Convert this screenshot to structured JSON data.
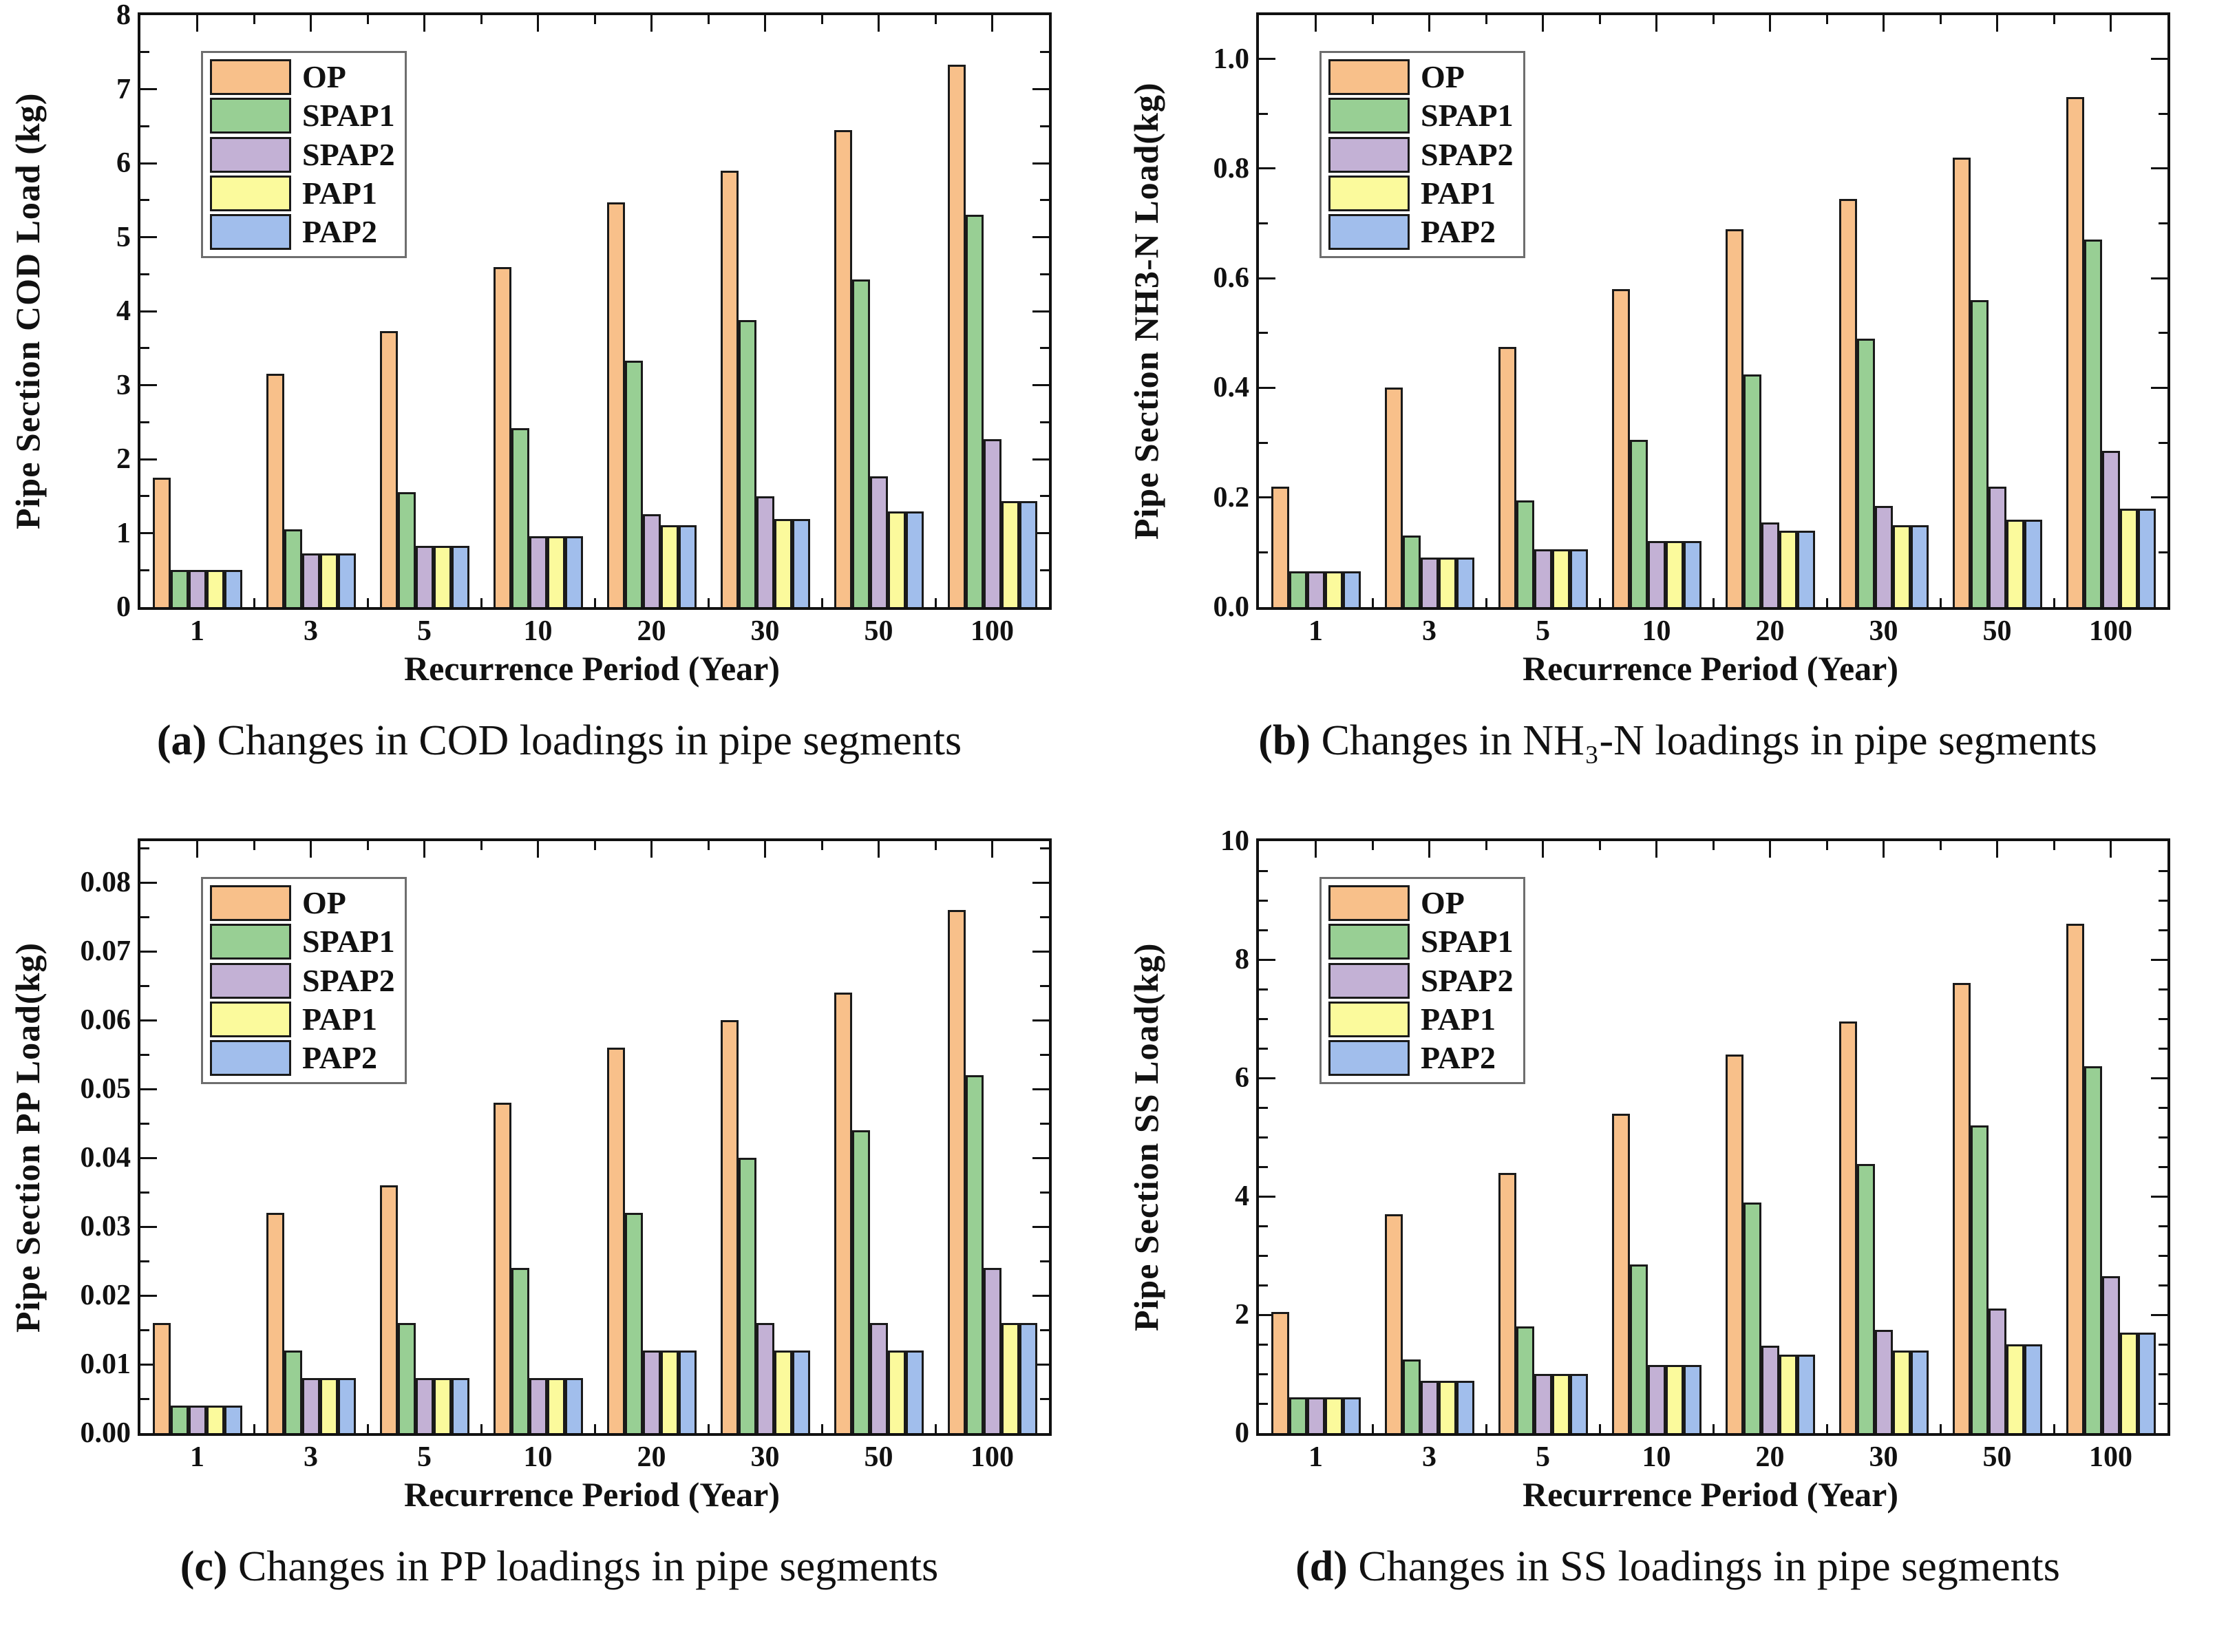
{
  "colors": {
    "OP": "#F8C08A",
    "SPAP1": "#98CF94",
    "SPAP2": "#C3B1D5",
    "PAP1": "#FBFA9C",
    "PAP2": "#A1BEEC",
    "bar_border": "#1a1a1a",
    "axis": "#111111",
    "legend_border": "#6e6e6e"
  },
  "series_names": [
    "OP",
    "SPAP1",
    "SPAP2",
    "PAP1",
    "PAP2"
  ],
  "x_label": "Recurrence Period (Year)",
  "categories": [
    "1",
    "3",
    "5",
    "10",
    "20",
    "30",
    "50",
    "100"
  ],
  "chart_data": "see charts[] below",
  "charts": [
    {
      "type": "bar",
      "caption_letter": "(a)",
      "caption_text": "Changes in COD loadings in pipe segments",
      "ylabel": "Pipe Section COD Load (kg)",
      "ylabel_max": 8,
      "axis_top": 8,
      "ymajor": 1,
      "yminor": 0.5,
      "decimals": 0,
      "categories": [
        "1",
        "3",
        "5",
        "10",
        "20",
        "30",
        "50",
        "100"
      ],
      "series": [
        {
          "name": "OP",
          "values": [
            1.75,
            3.15,
            3.73,
            4.6,
            5.47,
            5.9,
            6.45,
            7.33
          ]
        },
        {
          "name": "SPAP1",
          "values": [
            0.5,
            1.05,
            1.55,
            2.42,
            3.33,
            3.88,
            4.43,
            5.3
          ]
        },
        {
          "name": "SPAP2",
          "values": [
            0.5,
            0.73,
            0.83,
            0.96,
            1.26,
            1.5,
            1.77,
            2.27
          ]
        },
        {
          "name": "PAP1",
          "values": [
            0.5,
            0.73,
            0.83,
            0.96,
            1.11,
            1.19,
            1.29,
            1.43
          ]
        },
        {
          "name": "PAP2",
          "values": [
            0.5,
            0.73,
            0.83,
            0.96,
            1.11,
            1.19,
            1.29,
            1.43
          ]
        }
      ]
    },
    {
      "type": "bar",
      "caption_letter": "(b)",
      "caption_text": "Changes in NH₃-N loadings in pipe segments",
      "ylabel": "Pipe Section NH3-N Load(kg)",
      "ylabel_max": 1.0,
      "axis_top": 1.08,
      "ymajor": 0.2,
      "yminor": 0.1,
      "decimals": 1,
      "categories": [
        "1",
        "3",
        "5",
        "10",
        "20",
        "30",
        "50",
        "100"
      ],
      "series": [
        {
          "name": "OP",
          "values": [
            0.22,
            0.4,
            0.475,
            0.58,
            0.69,
            0.745,
            0.82,
            0.93
          ]
        },
        {
          "name": "SPAP1",
          "values": [
            0.065,
            0.13,
            0.195,
            0.305,
            0.425,
            0.49,
            0.56,
            0.67
          ]
        },
        {
          "name": "SPAP2",
          "values": [
            0.065,
            0.09,
            0.105,
            0.12,
            0.155,
            0.185,
            0.22,
            0.285
          ]
        },
        {
          "name": "PAP1",
          "values": [
            0.065,
            0.09,
            0.105,
            0.12,
            0.14,
            0.15,
            0.16,
            0.18
          ]
        },
        {
          "name": "PAP2",
          "values": [
            0.065,
            0.09,
            0.105,
            0.12,
            0.14,
            0.15,
            0.16,
            0.18
          ]
        }
      ]
    },
    {
      "type": "bar",
      "caption_letter": "(c)",
      "caption_text": "Changes in PP loadings in pipe segments",
      "ylabel": "Pipe Section PP Load(kg)",
      "ylabel_max": 0.08,
      "axis_top": 0.086,
      "ymajor": 0.01,
      "yminor": 0.005,
      "decimals": 2,
      "categories": [
        "1",
        "3",
        "5",
        "10",
        "20",
        "30",
        "50",
        "100"
      ],
      "series": [
        {
          "name": "OP",
          "values": [
            0.016,
            0.032,
            0.036,
            0.048,
            0.056,
            0.06,
            0.064,
            0.076
          ]
        },
        {
          "name": "SPAP1",
          "values": [
            0.004,
            0.012,
            0.016,
            0.024,
            0.032,
            0.04,
            0.044,
            0.052
          ]
        },
        {
          "name": "SPAP2",
          "values": [
            0.004,
            0.008,
            0.008,
            0.008,
            0.012,
            0.016,
            0.016,
            0.024
          ]
        },
        {
          "name": "PAP1",
          "values": [
            0.004,
            0.008,
            0.008,
            0.008,
            0.012,
            0.012,
            0.012,
            0.016
          ]
        },
        {
          "name": "PAP2",
          "values": [
            0.004,
            0.008,
            0.008,
            0.008,
            0.012,
            0.012,
            0.012,
            0.016
          ]
        }
      ]
    },
    {
      "type": "bar",
      "caption_letter": "(d)",
      "caption_text": "Changes in SS loadings in pipe segments",
      "ylabel": "Pipe Section SS Load(kg)",
      "ylabel_max": 10,
      "axis_top": 10,
      "ymajor": 2,
      "yminor": 0.5,
      "decimals": 0,
      "categories": [
        "1",
        "3",
        "5",
        "10",
        "20",
        "30",
        "50",
        "100"
      ],
      "series": [
        {
          "name": "OP",
          "values": [
            2.05,
            3.7,
            4.4,
            5.4,
            6.4,
            6.95,
            7.6,
            8.6
          ]
        },
        {
          "name": "SPAP1",
          "values": [
            0.6,
            1.25,
            1.8,
            2.85,
            3.9,
            4.55,
            5.2,
            6.2
          ]
        },
        {
          "name": "SPAP2",
          "values": [
            0.6,
            0.88,
            1.0,
            1.15,
            1.48,
            1.75,
            2.1,
            2.65
          ]
        },
        {
          "name": "PAP1",
          "values": [
            0.6,
            0.88,
            1.0,
            1.15,
            1.32,
            1.4,
            1.5,
            1.7
          ]
        },
        {
          "name": "PAP2",
          "values": [
            0.6,
            0.88,
            1.0,
            1.15,
            1.32,
            1.4,
            1.5,
            1.7
          ]
        }
      ]
    }
  ]
}
